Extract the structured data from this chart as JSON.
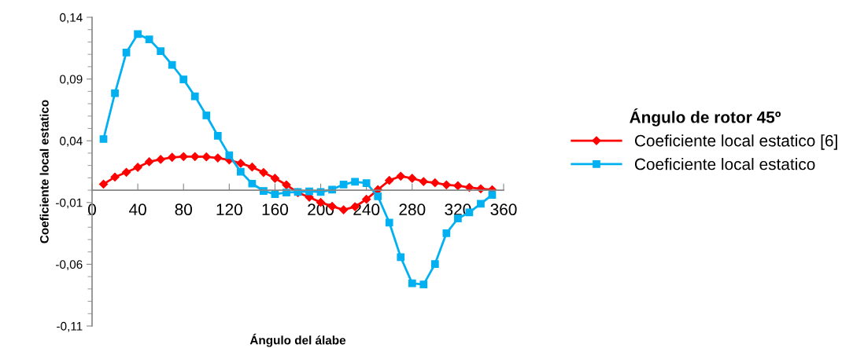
{
  "chart_data": {
    "type": "line",
    "xlabel": "Ángulo del álabe",
    "ylabel": "Coeficiente local estatico",
    "legend_title": "Ángulo de rotor 45º",
    "legend": "right",
    "grid": false,
    "line_style": "solid",
    "x": [
      10,
      20,
      30,
      40,
      50,
      60,
      70,
      80,
      90,
      100,
      110,
      120,
      130,
      140,
      150,
      160,
      170,
      180,
      190,
      200,
      210,
      220,
      230,
      240,
      250,
      260,
      270,
      280,
      290,
      300,
      310,
      320,
      330,
      340,
      350
    ],
    "xlim": [
      0,
      360
    ],
    "xticks": [
      0,
      40,
      80,
      120,
      160,
      200,
      240,
      280,
      320,
      360
    ],
    "ylim": [
      -0.11,
      0.14
    ],
    "yticks": [
      {
        "value": -0.11,
        "label": "-0,11"
      },
      {
        "value": -0.06,
        "label": "-0,06"
      },
      {
        "value": -0.01,
        "label": "-0,01"
      },
      {
        "value": 0.04,
        "label": "0,04"
      },
      {
        "value": 0.09,
        "label": "0,09"
      },
      {
        "value": 0.14,
        "label": "0,14"
      }
    ],
    "series": [
      {
        "name": "Coeficiente local estatico [6]",
        "color": "#ff0000",
        "marker": "diamond",
        "values": [
          0.0049,
          0.0106,
          0.0145,
          0.0185,
          0.023,
          0.0249,
          0.0266,
          0.0272,
          0.0272,
          0.027,
          0.0261,
          0.0245,
          0.0217,
          0.0187,
          0.0143,
          0.0096,
          0.0043,
          -0.002,
          -0.0057,
          -0.0099,
          -0.0131,
          -0.0159,
          -0.0134,
          -0.0074,
          0.0004,
          0.0079,
          0.0113,
          0.0096,
          0.007,
          0.006,
          0.0043,
          0.0036,
          0.0022,
          0.0011,
          0.0003
        ]
      },
      {
        "name": "Coeficiente local estatico",
        "color": "#00b0f0",
        "marker": "square",
        "values": [
          0.0414,
          0.0786,
          0.1115,
          0.1264,
          0.1221,
          0.1125,
          0.1015,
          0.0896,
          0.076,
          0.0605,
          0.044,
          0.0283,
          0.0149,
          0.0053,
          -0.0006,
          -0.0032,
          -0.002,
          -0.0015,
          -0.001,
          -0.0015,
          0.0005,
          0.0046,
          0.0068,
          0.0057,
          -0.005,
          -0.0262,
          -0.0543,
          -0.0754,
          -0.0764,
          -0.0598,
          -0.0348,
          -0.023,
          -0.018,
          -0.011,
          -0.0038
        ]
      }
    ]
  }
}
